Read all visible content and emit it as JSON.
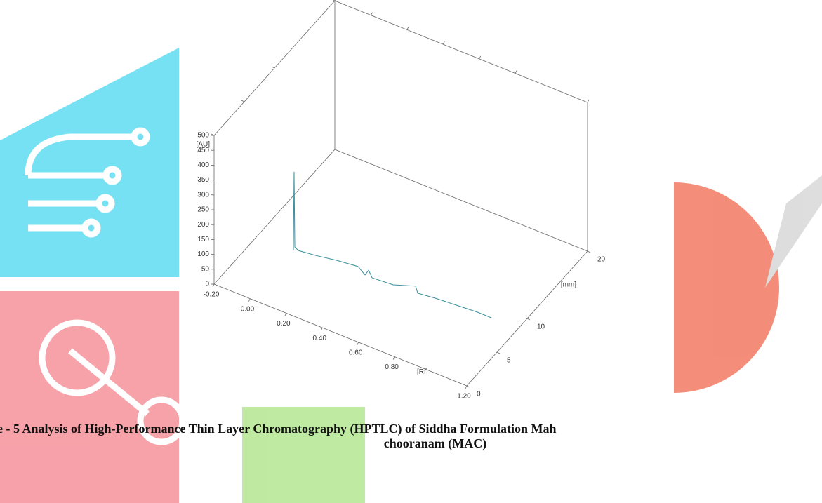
{
  "chart_data": {
    "type": "line3d",
    "caption_lines": [
      "e - 5 Analysis of High-Performance Thin Layer Chromatography (HPTLC) of Siddha Formulation Mah",
      "chooranam (MAC)"
    ],
    "xlabel": "[Rf]",
    "ylabel": "[AU]",
    "zlabel": "[mm]",
    "xlim": [
      -0.2,
      1.2
    ],
    "ylim": [
      0,
      500
    ],
    "zlim": [
      0,
      20
    ],
    "xticks": [
      {
        "value": -0.2,
        "label": "-0.20"
      },
      {
        "value": 0,
        "label": "0.00"
      },
      {
        "value": 0.2,
        "label": "0.20"
      },
      {
        "value": 0.4,
        "label": "0.40"
      },
      {
        "value": 0.6,
        "label": "0.60"
      },
      {
        "value": 0.8,
        "label": "0.80"
      },
      {
        "value": 1.2,
        "label": "1.20"
      }
    ],
    "yticks": [
      0,
      50,
      100,
      150,
      200,
      250,
      300,
      350,
      400,
      450,
      500
    ],
    "zticks": [
      0,
      5,
      10,
      20
    ],
    "series": [
      {
        "color": "#3a8f9a",
        "z": 5,
        "x": [
          0.072,
          0.076,
          0.08,
          0.1,
          0.197,
          0.314,
          0.43,
          0.469,
          0.489,
          0.508,
          0.625,
          0.749,
          0.761,
          0.858,
          0.975,
          1.092,
          1.17
        ],
        "values": [
          66,
          332,
          80,
          73,
          80,
          92,
          100,
          81,
          102,
          81,
          86,
          112,
          91,
          98,
          103,
          108,
          108
        ]
      }
    ]
  }
}
